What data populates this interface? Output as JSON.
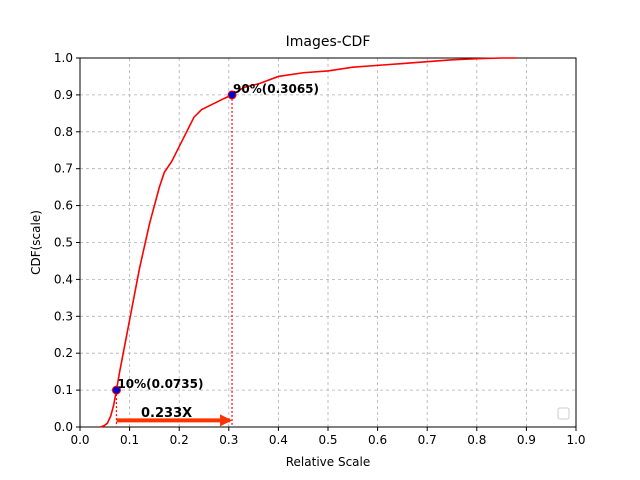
{
  "chart_data": {
    "type": "line",
    "title": "Images-CDF",
    "xlabel": "Relative Scale",
    "ylabel": "CDF(scale)",
    "xlim": [
      0.0,
      1.0
    ],
    "ylim": [
      0.0,
      1.0
    ],
    "xticks": [
      "0.0",
      "0.1",
      "0.2",
      "0.3",
      "0.4",
      "0.5",
      "0.6",
      "0.7",
      "0.8",
      "0.9",
      "1.0"
    ],
    "yticks": [
      "0.0",
      "0.1",
      "0.2",
      "0.3",
      "0.4",
      "0.5",
      "0.6",
      "0.7",
      "0.8",
      "0.9",
      "1.0"
    ],
    "grid": true,
    "grid_style": "dashed",
    "legend": "lower-right (empty)",
    "colors": {
      "line": "#ff0000",
      "marker": "#0000cc",
      "marker_edge": "#ff0000",
      "grid": "#b0b0b0",
      "arrow": "#ff3300"
    },
    "series": [
      {
        "x": [
          0.04,
          0.048,
          0.055,
          0.062,
          0.068,
          0.0735,
          0.08,
          0.09,
          0.1,
          0.11,
          0.12,
          0.13,
          0.14,
          0.15,
          0.16,
          0.17,
          0.185,
          0.2,
          0.215,
          0.23,
          0.245,
          0.26,
          0.275,
          0.29,
          0.3065,
          0.33,
          0.36,
          0.4,
          0.45,
          0.5,
          0.55,
          0.6,
          0.65,
          0.7,
          0.75,
          0.8,
          0.85,
          0.88
        ],
        "y": [
          0.0,
          0.003,
          0.01,
          0.03,
          0.06,
          0.1,
          0.15,
          0.22,
          0.29,
          0.36,
          0.43,
          0.49,
          0.55,
          0.6,
          0.65,
          0.69,
          0.72,
          0.76,
          0.8,
          0.84,
          0.86,
          0.87,
          0.88,
          0.89,
          0.9,
          0.92,
          0.93,
          0.95,
          0.96,
          0.965,
          0.975,
          0.98,
          0.985,
          0.99,
          0.995,
          0.998,
          1.0,
          1.0
        ]
      }
    ],
    "points": [
      {
        "x": 0.0735,
        "y": 0.1,
        "label": "10%(0.0735)"
      },
      {
        "x": 0.3065,
        "y": 0.9,
        "label": "90%(0.3065)"
      }
    ],
    "annotation": {
      "text": "0.233X",
      "arrow_from_x": 0.0735,
      "arrow_to_x": 0.3065
    }
  }
}
